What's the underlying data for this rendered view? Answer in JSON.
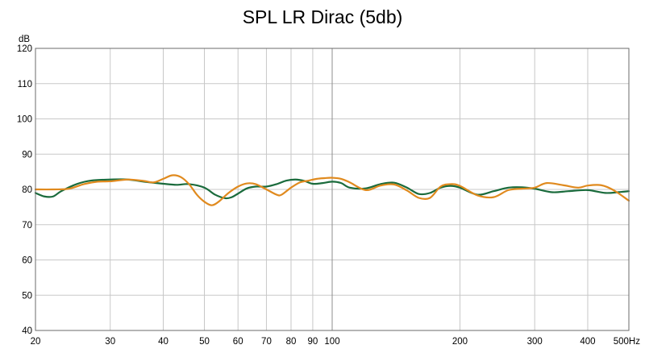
{
  "chart_data": {
    "type": "line",
    "title": "SPL LR Dirac (5db)",
    "ylabel": "dB",
    "xlabel": "",
    "x_scale": "log",
    "xlim": [
      20,
      500
    ],
    "ylim": [
      40,
      120
    ],
    "grid": true,
    "legend": "none",
    "x_ticks": [
      {
        "value": 20,
        "label": "20"
      },
      {
        "value": 30,
        "label": "30"
      },
      {
        "value": 40,
        "label": "40"
      },
      {
        "value": 50,
        "label": "50"
      },
      {
        "value": 60,
        "label": "60"
      },
      {
        "value": 70,
        "label": "70"
      },
      {
        "value": 80,
        "label": "80"
      },
      {
        "value": 90,
        "label": "90"
      },
      {
        "value": 100,
        "label": "100"
      },
      {
        "value": 200,
        "label": "200"
      },
      {
        "value": 300,
        "label": "300"
      },
      {
        "value": 400,
        "label": "400"
      },
      {
        "value": 500,
        "label": "500Hz"
      }
    ],
    "y_ticks": [
      120,
      110,
      100,
      90,
      80,
      70,
      60,
      50,
      40
    ],
    "series": [
      {
        "color": "#1a6b3c",
        "x": [
          20,
          21,
          22,
          23,
          25,
          27,
          30,
          33,
          36,
          40,
          43,
          46,
          50,
          53,
          56,
          58,
          60,
          63,
          66,
          70,
          74,
          78,
          82,
          86,
          90,
          95,
          100,
          105,
          110,
          120,
          130,
          140,
          150,
          160,
          170,
          180,
          190,
          200,
          220,
          240,
          260,
          280,
          300,
          330,
          360,
          400,
          440,
          480,
          500
        ],
        "y": [
          79,
          78,
          78,
          79.5,
          81.5,
          82.5,
          82.8,
          82.8,
          82.2,
          81.6,
          81.3,
          81.5,
          80.5,
          78.5,
          77.5,
          77.8,
          78.8,
          80.3,
          80.8,
          80.8,
          81.5,
          82.5,
          82.8,
          82.4,
          81.6,
          81.8,
          82.2,
          81.8,
          80.5,
          80.3,
          81.5,
          81.9,
          80.5,
          78.7,
          79,
          80.5,
          81,
          80.5,
          78.5,
          79.5,
          80.5,
          80.6,
          80.2,
          79.2,
          79.5,
          79.8,
          79,
          79.3,
          79.5
        ]
      },
      {
        "color": "#e08a1e",
        "x": [
          20,
          22,
          24,
          26,
          28,
          30,
          33,
          36,
          38,
          40,
          42,
          44,
          46,
          48,
          50,
          52,
          54,
          57,
          60,
          63,
          66,
          70,
          74,
          76,
          80,
          84,
          88,
          92,
          96,
          100,
          105,
          110,
          120,
          130,
          140,
          150,
          160,
          170,
          180,
          190,
          200,
          220,
          240,
          260,
          280,
          300,
          320,
          350,
          380,
          400,
          430,
          460,
          500
        ],
        "y": [
          80,
          80,
          80.2,
          81.5,
          82.2,
          82.3,
          82.8,
          82.4,
          82,
          83,
          84,
          83.5,
          81.5,
          78.5,
          76.5,
          75.5,
          76.5,
          79,
          80.8,
          81.7,
          81.5,
          80,
          78.5,
          78.5,
          80.5,
          82,
          82.5,
          83,
          83.2,
          83.3,
          83,
          82,
          79.8,
          81.1,
          81.4,
          79.7,
          77.6,
          77.6,
          80.8,
          81.5,
          81,
          78.3,
          77.8,
          79.8,
          80.2,
          80.5,
          81.8,
          81.2,
          80.5,
          81.1,
          81.2,
          79.8,
          76.8
        ]
      }
    ]
  }
}
